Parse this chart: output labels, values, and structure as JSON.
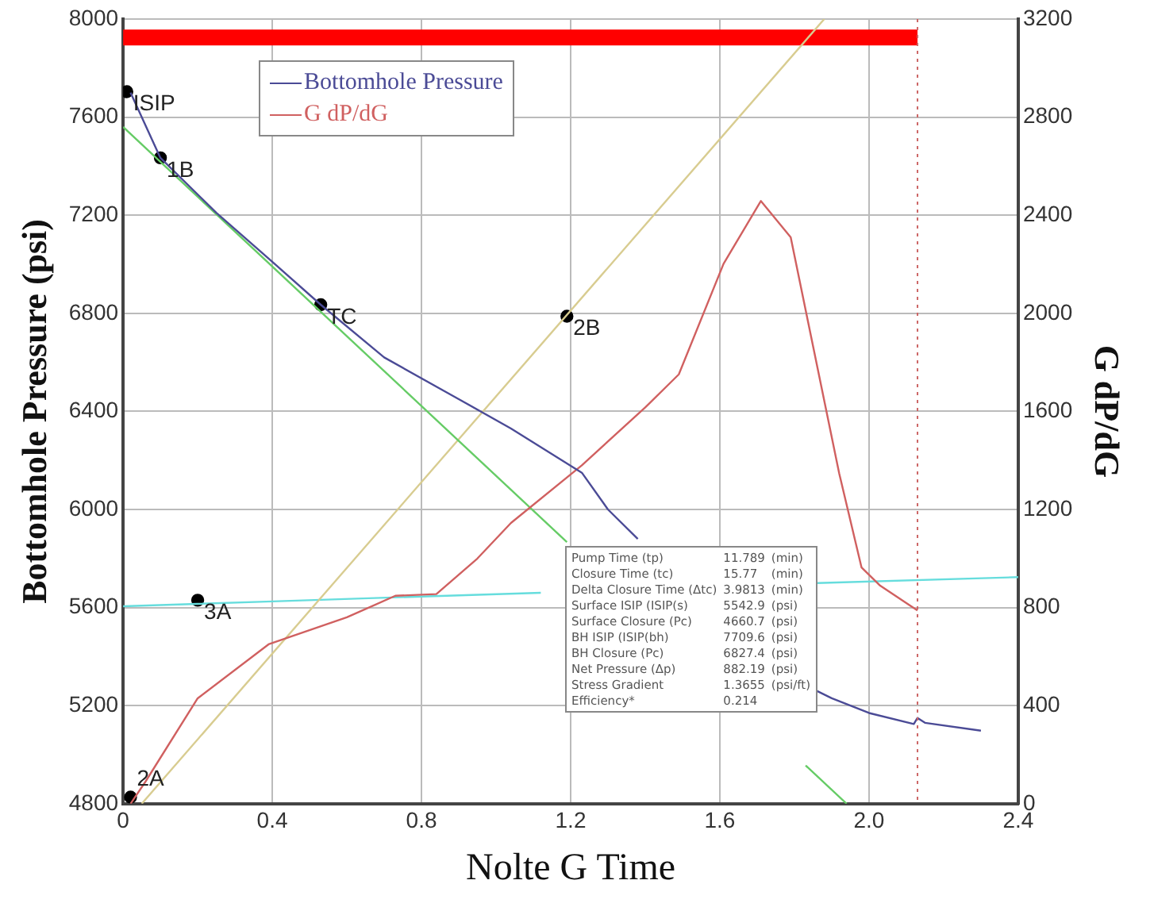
{
  "chart_data": {
    "type": "line",
    "xlabel": "Nolte G Time",
    "ylabel": "Bottomhole Pressure (psi)",
    "y2label": "G dP/dG",
    "xlim": [
      0,
      2.4
    ],
    "xticks": [
      0,
      0.4,
      0.8,
      1.2,
      1.6,
      {
        "value": 2,
        "label": "2.0"
      },
      2.4
    ],
    "ylim": [
      4800,
      8000
    ],
    "yticks": [
      4800,
      5200,
      5600,
      6000,
      6400,
      6800,
      7200,
      7600,
      8000
    ],
    "y2lim": [
      0,
      3200
    ],
    "y2ticks": [
      0,
      400,
      800,
      1200,
      1600,
      2000,
      2400,
      2800,
      3200
    ],
    "grid": true,
    "legend": "top left",
    "marker": "none",
    "line_style": "solid",
    "series": [
      {
        "name": "Bottomhole Pressure",
        "color": "#4b4b96",
        "axis": "y",
        "x": [
          0.02,
          0.1,
          0.25,
          0.4,
          0.53,
          0.7,
          0.9,
          1.04,
          1.23,
          1.3,
          1.38,
          1.6,
          1.86,
          1.9,
          2.0,
          2.12,
          2.13,
          2.15,
          2.3
        ],
        "values": [
          7700,
          7434,
          7210,
          7010,
          6835,
          6620,
          6450,
          6330,
          6150,
          6000,
          5880,
          null,
          5260,
          5230,
          5170,
          5125,
          5150,
          5130,
          5098
        ]
      },
      {
        "name": "G dP/dG",
        "color": "#d06060",
        "axis": "y2",
        "x": [
          0.02,
          0.06,
          0.2,
          0.39,
          0.6,
          0.73,
          0.84,
          0.95,
          1.04,
          1.23,
          1.4,
          1.49,
          1.61,
          1.71,
          1.79,
          1.92,
          1.98,
          2.03,
          2.13
        ],
        "values": [
          0,
          90,
          430,
          650,
          760,
          848,
          855,
          1000,
          1145,
          1380,
          1616,
          1751,
          2202,
          2458,
          2310,
          1347,
          963,
          889,
          788
        ]
      },
      {
        "color": "#66cc66",
        "axis": "y",
        "x": [
          0,
          1.19,
          1.5,
          1.83,
          1.94
        ],
        "values": [
          7560,
          5867,
          null,
          4956,
          4800
        ]
      },
      {
        "color": "#d8cc90",
        "axis": "y",
        "x": [
          0.05,
          1.88
        ],
        "values": [
          4800,
          8000
        ]
      },
      {
        "color": "#66dddd",
        "axis": "y",
        "x": [
          0,
          0.4,
          0.8,
          1.12,
          1.5,
          1.86,
          2.4
        ],
        "values": [
          5605,
          5625,
          5645,
          5660,
          null,
          5700,
          5724
        ]
      },
      {
        "color": "#ff0000",
        "axis": "y2",
        "x": [
          0,
          2.13
        ],
        "values": [
          3125,
          3125
        ]
      },
      {
        "type": "scatter",
        "marker": "circle",
        "color": "#000000",
        "axis": "y",
        "x": [
          0.01,
          0.1,
          0.53,
          1.19,
          0.2,
          0.02
        ],
        "values": [
          7704,
          7434,
          6835,
          6788,
          5630,
          4827
        ]
      }
    ],
    "ref_lines": [
      {
        "axis": "x",
        "value": 2.13,
        "color": "#cc6666",
        "line_style": "dotted"
      }
    ],
    "annotations": [
      {
        "text": "ISIP",
        "x": 0.01,
        "y": 7704
      },
      {
        "text": "1B",
        "x": 0.1,
        "y": 7434
      },
      {
        "text": "TC",
        "x": 0.53,
        "y": 6835
      },
      {
        "text": "2B",
        "x": 1.19,
        "y": 6788
      },
      {
        "text": "3A",
        "x": 0.2,
        "y": 5630
      },
      {
        "text": "2A",
        "x": 0.02,
        "y": 4827
      },
      "Pump Time (tp)",
      "11.789",
      "(min)",
      "Closure Time (tc)",
      "15.77",
      "(min)",
      "Delta Closure Time (Δtc)",
      "3.9813",
      "(min)",
      "Surface ISIP (ISIP(s)",
      "5542.9",
      "(psi)",
      "Surface Closure (Pc)",
      "4660.7",
      "(psi)",
      "BH ISIP (ISIP(bh)",
      "7709.6",
      "(psi)",
      "BH Closure (Pc)",
      "6827.4",
      "(psi)",
      "Net Pressure (Δp)",
      "882.19",
      "(psi)",
      "Stress Gradient",
      "1.3655",
      "(psi/ft)",
      "Efficiency*",
      "0.214"
    ]
  }
}
